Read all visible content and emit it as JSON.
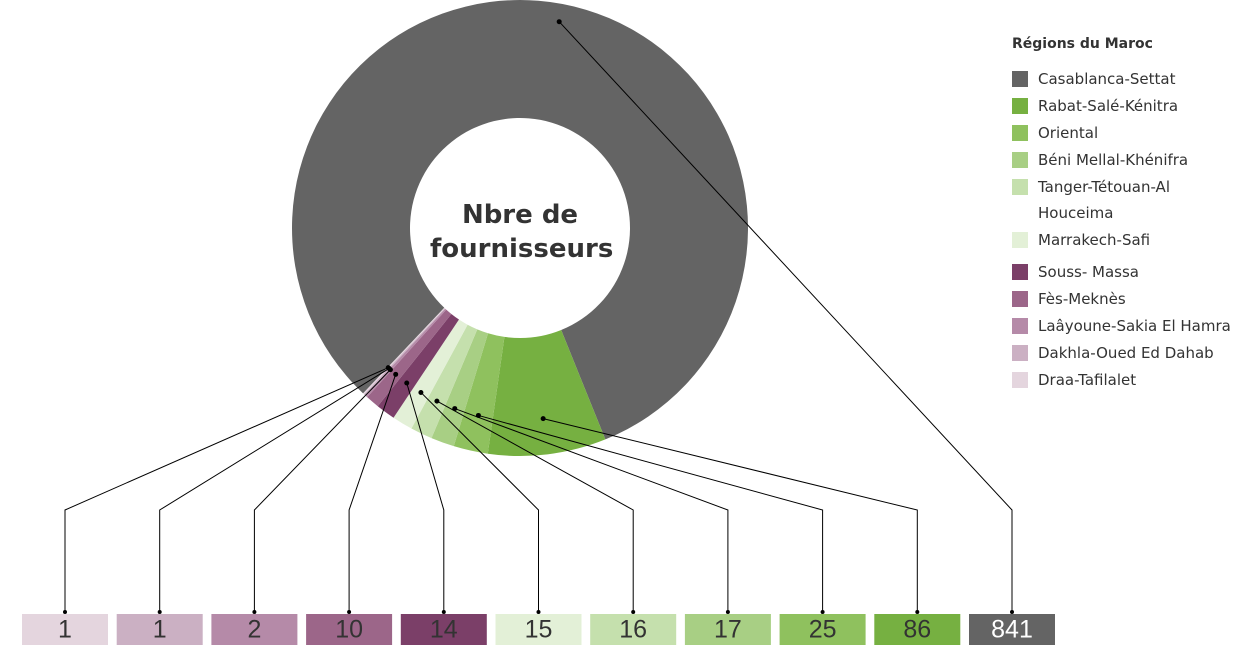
{
  "chart_data": {
    "type": "donut",
    "center_label": "Nbre de fournisseurs",
    "legend_title": "Régions du Maroc",
    "categories": [
      "Casablanca-Settat",
      "Rabat-Salé-Kénitra",
      "Oriental",
      "Béni Mellal-Khénifra",
      "Tanger-Tétouan-Al Houceima",
      "Marrakech-Safi",
      "Souss- Massa",
      "Fès-Meknès",
      "Laâyoune-Sakia El Hamra",
      "Dakhla-Oued Ed Dahab",
      "Draa-Tafilalet"
    ],
    "values": [
      841,
      86,
      25,
      17,
      16,
      15,
      14,
      10,
      2,
      1,
      1
    ],
    "colors": [
      "#646464",
      "#76b041",
      "#8fc15e",
      "#a8cf84",
      "#c5e0ad",
      "#e3f0d7",
      "#7b3f68",
      "#9c6689",
      "#b58aa8",
      "#cbb0c3",
      "#e4d5de"
    ]
  }
}
